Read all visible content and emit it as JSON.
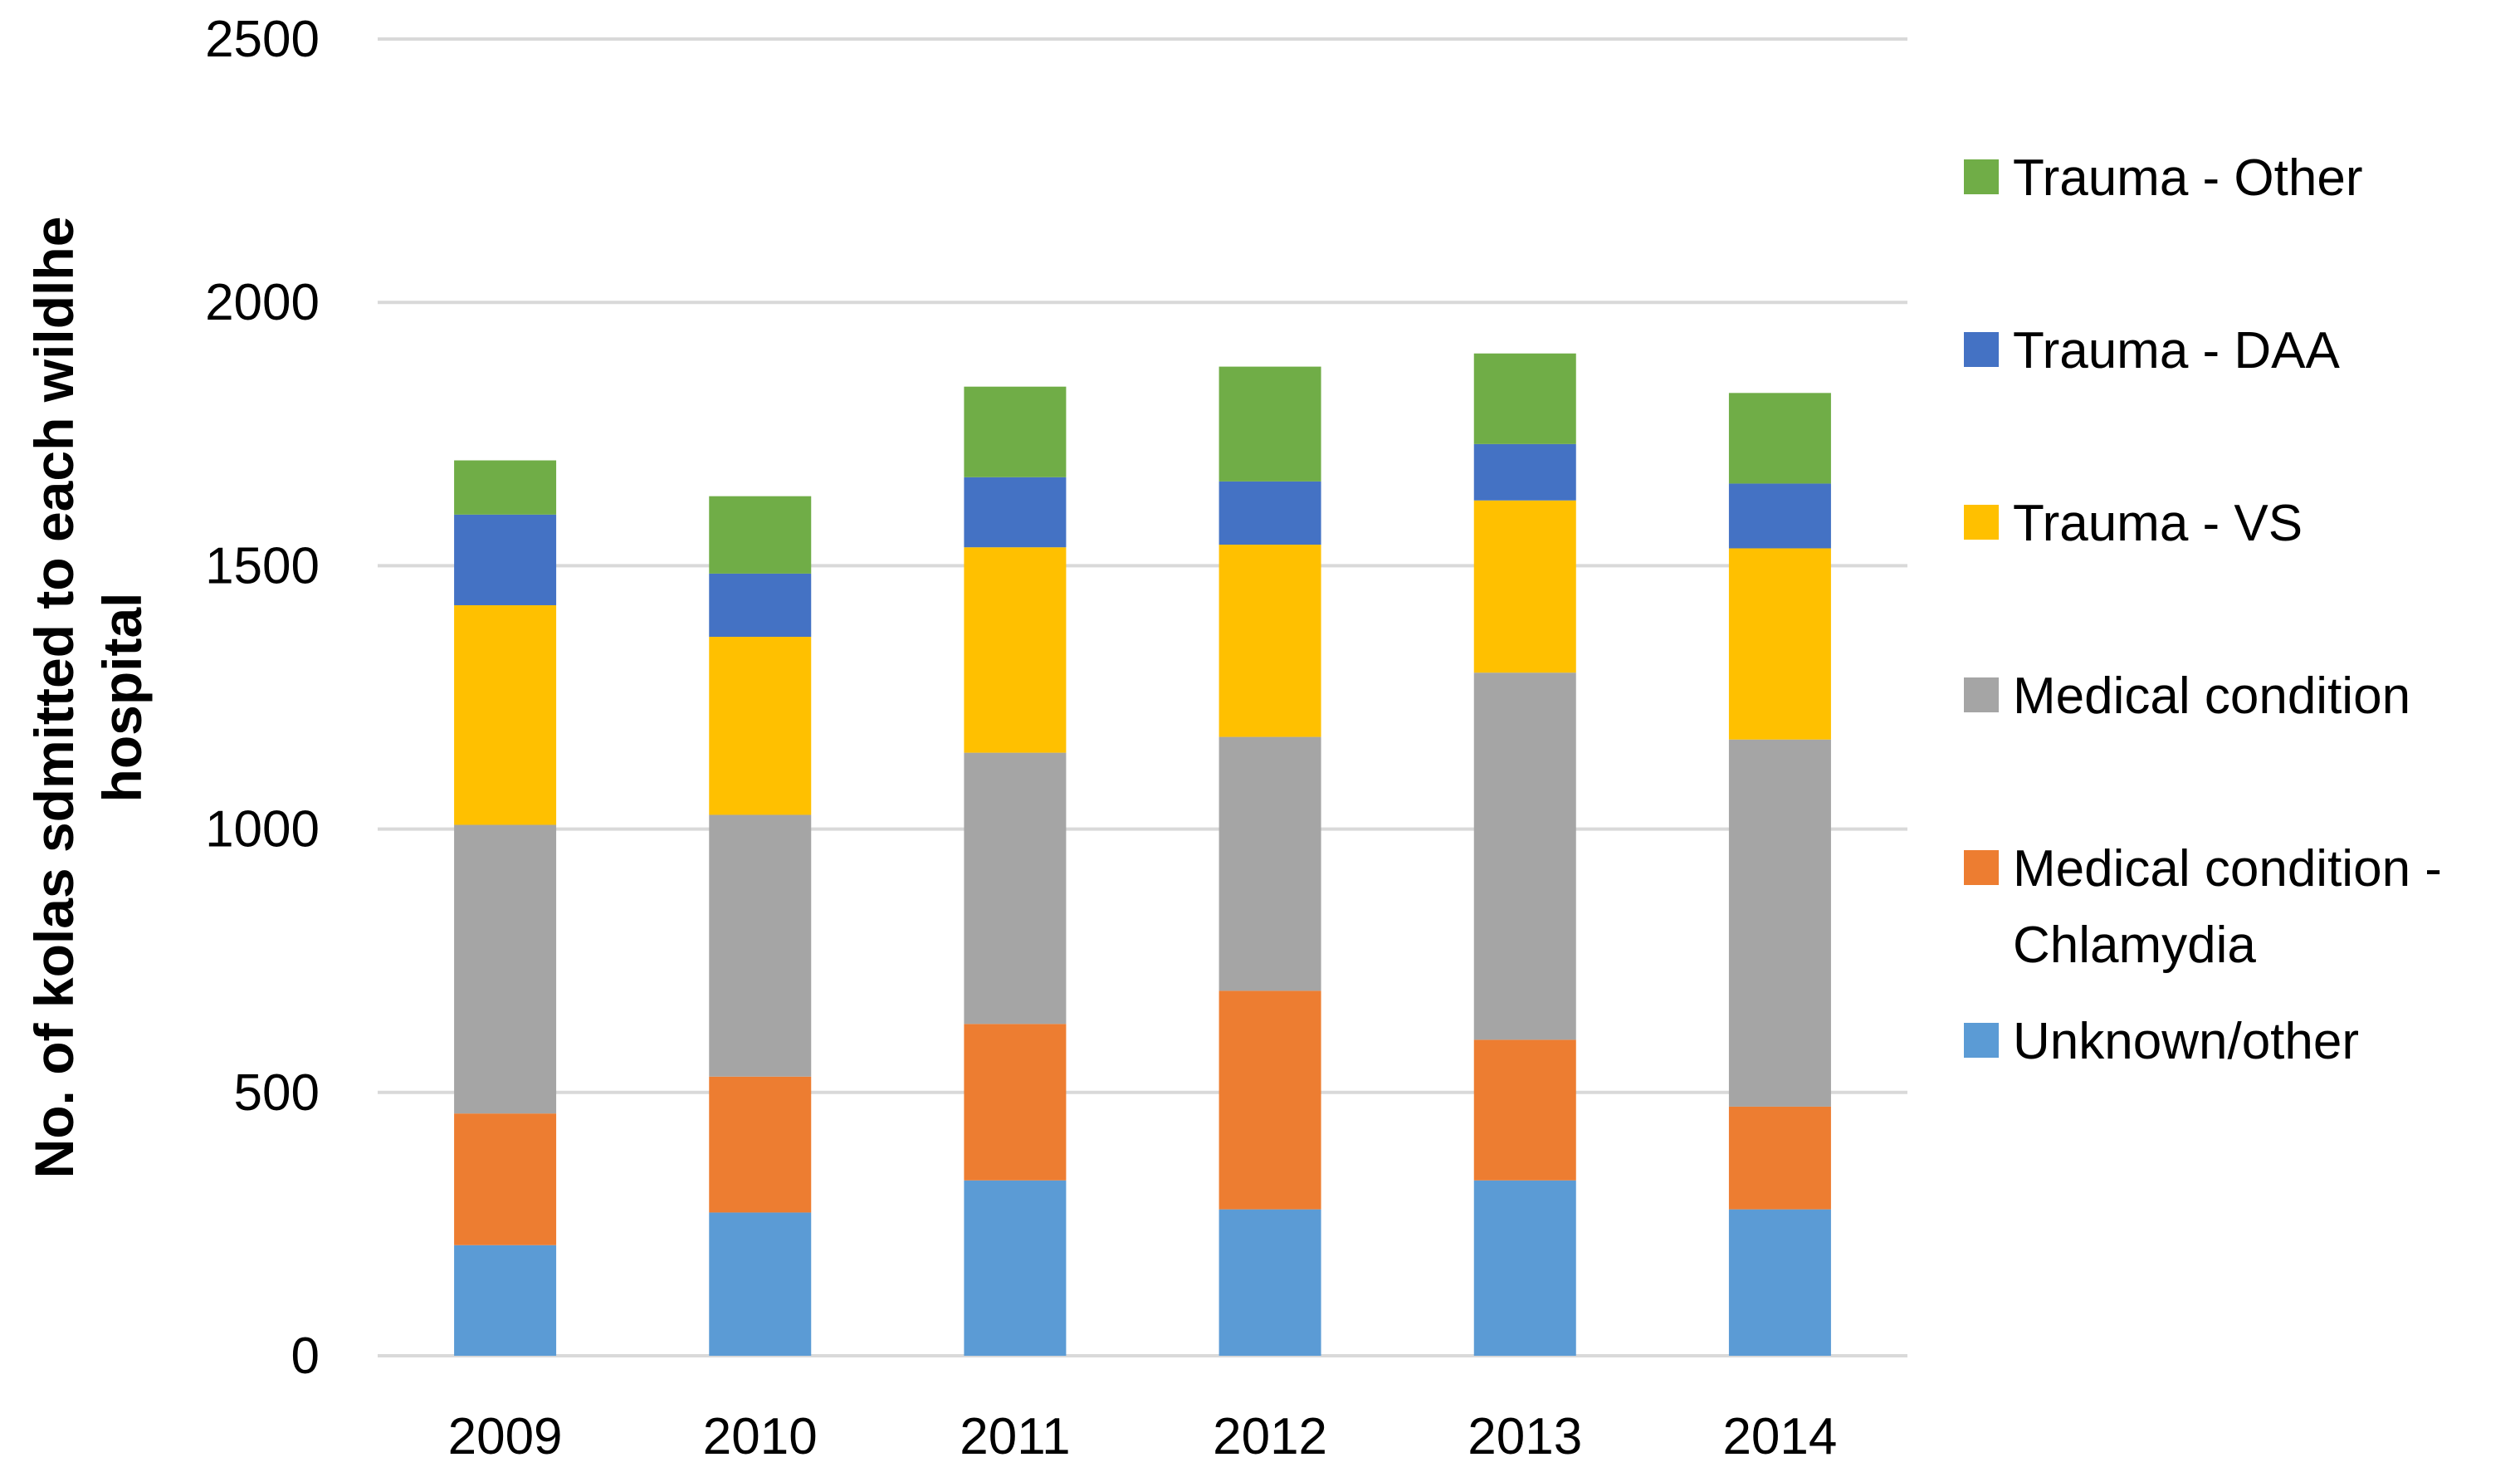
{
  "chart_data": {
    "type": "bar",
    "stacked": true,
    "title": "",
    "xlabel": "",
    "ylabel": "No. of kolas sdmitted to each wildlhe hospital",
    "ylabel_lines": [
      "No. of kolas sdmitted to each wildlhe",
      "hospital"
    ],
    "ylim": [
      0,
      2500
    ],
    "yticks": [
      0,
      500,
      1000,
      1500,
      2000,
      2500
    ],
    "grid": true,
    "legend_position": "right",
    "categories": [
      "2009",
      "2010",
      "2011",
      "2012",
      "2013",
      "2014"
    ],
    "series": [
      {
        "name": "Unknown/other",
        "legend_lines": [
          "Unknown/other"
        ],
        "color": "#5B9BD5",
        "values": [
          210,
          272,
          333,
          278,
          333,
          278
        ]
      },
      {
        "name": "Medical condition - Chlamydia",
        "legend_lines": [
          "Medical condition -",
          "Chlamydia"
        ],
        "color": "#ED7D31",
        "values": [
          250,
          258,
          297,
          415,
          267,
          195
        ]
      },
      {
        "name": "Medical condition",
        "legend_lines": [
          "Medical condition"
        ],
        "color": "#A5A5A5",
        "values": [
          548,
          497,
          515,
          482,
          697,
          697
        ]
      },
      {
        "name": "Trauma - VS",
        "legend_lines": [
          "Trauma - VS"
        ],
        "color": "#FFC000",
        "values": [
          417,
          338,
          390,
          365,
          327,
          363
        ]
      },
      {
        "name": "Trauma - DAA",
        "legend_lines": [
          "Trauma - DAA"
        ],
        "color": "#4472C4",
        "values": [
          172,
          120,
          133,
          120,
          107,
          123
        ]
      },
      {
        "name": "Trauma - Other",
        "legend_lines": [
          "Trauma - Other"
        ],
        "color": "#70AD47",
        "values": [
          103,
          147,
          172,
          218,
          172,
          172
        ]
      }
    ]
  }
}
